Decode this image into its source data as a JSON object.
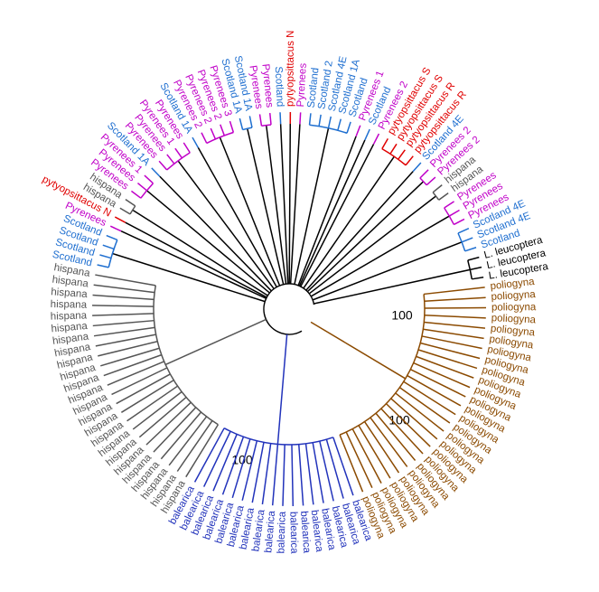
{
  "tree": {
    "leaves": [
      {
        "label": "Scotland",
        "color": "#1f6fd0"
      },
      {
        "label": "Scotland",
        "color": "#1f6fd0"
      },
      {
        "label": "Scotland",
        "color": "#1f6fd0"
      },
      {
        "label": "Scotland",
        "color": "#1f6fd0"
      },
      {
        "label": "Pyrenees",
        "color": "#c000c8"
      },
      {
        "label": "pytyopsittacus N",
        "color": "#e00000"
      },
      {
        "label": "hispana",
        "color": "#555555"
      },
      {
        "label": "hispana",
        "color": "#555555"
      },
      {
        "label": "Pyrenees",
        "color": "#c000c8"
      },
      {
        "label": "Pyrenees",
        "color": "#c000c8"
      },
      {
        "label": "Pyrenees 1",
        "color": "#c000c8"
      },
      {
        "label": "Scotland 1A",
        "color": "#1f6fd0"
      },
      {
        "label": "Pyrenees",
        "color": "#c000c8"
      },
      {
        "label": "Pyrenees",
        "color": "#c000c8"
      },
      {
        "label": "Pyrenees 1",
        "color": "#c000c8"
      },
      {
        "label": "Pyrenees",
        "color": "#c000c8"
      },
      {
        "label": "Scotland 1A",
        "color": "#1f6fd0"
      },
      {
        "label": "Pyrenees 2",
        "color": "#c000c8"
      },
      {
        "label": "Pyrenees 2",
        "color": "#c000c8"
      },
      {
        "label": "Pyrenees 2",
        "color": "#c000c8"
      },
      {
        "label": "Pyrenees 3",
        "color": "#c000c8"
      },
      {
        "label": "Scotland 1A",
        "color": "#1f6fd0"
      },
      {
        "label": "Scotland 1A",
        "color": "#1f6fd0"
      },
      {
        "label": "Pyrenees",
        "color": "#c000c8"
      },
      {
        "label": "Pyrenees",
        "color": "#c000c8"
      },
      {
        "label": "Scotland",
        "color": "#1f6fd0"
      },
      {
        "label": "pytyopsittacus N",
        "color": "#e00000"
      },
      {
        "label": "Pyrenees",
        "color": "#c000c8"
      },
      {
        "label": "Scotland",
        "color": "#1f6fd0"
      },
      {
        "label": "Scotland 2",
        "color": "#1f6fd0"
      },
      {
        "label": "Scotland 4E",
        "color": "#1f6fd0"
      },
      {
        "label": "Scotland 1A",
        "color": "#1f6fd0"
      },
      {
        "label": "Scotland",
        "color": "#1f6fd0"
      },
      {
        "label": "Pyrenees 1",
        "color": "#c000c8"
      },
      {
        "label": "Scotland",
        "color": "#1f6fd0"
      },
      {
        "label": "Pyrenees 2",
        "color": "#c000c8"
      },
      {
        "label": "pytyopsittacus S",
        "color": "#e00000"
      },
      {
        "label": "pytyopsittacus S",
        "color": "#e00000"
      },
      {
        "label": "pytyopsittacus R",
        "color": "#e00000"
      },
      {
        "label": "pytyopsittacus R",
        "color": "#e00000"
      },
      {
        "label": "Scotland 4E",
        "color": "#1f6fd0"
      },
      {
        "label": "Pyrenees 2",
        "color": "#c000c8"
      },
      {
        "label": "Pyrenees 2",
        "color": "#c000c8"
      },
      {
        "label": "hispana",
        "color": "#555555"
      },
      {
        "label": "hispana",
        "color": "#555555"
      },
      {
        "label": "Pyrenees",
        "color": "#c000c8"
      },
      {
        "label": "Pyrenees",
        "color": "#c000c8"
      },
      {
        "label": "Pyrenees",
        "color": "#c000c8"
      },
      {
        "label": "Scotland 4E",
        "color": "#1f6fd0"
      },
      {
        "label": "Scotland 4E",
        "color": "#1f6fd0"
      },
      {
        "label": "Scotland",
        "color": "#1f6fd0"
      },
      {
        "label": "L. leucoptera",
        "color": "#000000"
      },
      {
        "label": "L. leucoptera",
        "color": "#000000"
      },
      {
        "label": "L. leucoptera",
        "color": "#000000"
      },
      {
        "label": "poliogyna",
        "color": "#8b4a00"
      },
      {
        "label": "poliogyna",
        "color": "#8b4a00"
      },
      {
        "label": "poliogyna",
        "color": "#8b4a00"
      },
      {
        "label": "poliogyna",
        "color": "#8b4a00"
      },
      {
        "label": "poliogyna",
        "color": "#8b4a00"
      },
      {
        "label": "poliogyna",
        "color": "#8b4a00"
      },
      {
        "label": "poliogyna",
        "color": "#8b4a00"
      },
      {
        "label": "poliogyna",
        "color": "#8b4a00"
      },
      {
        "label": "poliogyna",
        "color": "#8b4a00"
      },
      {
        "label": "poliogyna",
        "color": "#8b4a00"
      },
      {
        "label": "poliogyna",
        "color": "#8b4a00"
      },
      {
        "label": "poliogyna",
        "color": "#8b4a00"
      },
      {
        "label": "poliogyna",
        "color": "#8b4a00"
      },
      {
        "label": "poliogyna",
        "color": "#8b4a00"
      },
      {
        "label": "poliogyna",
        "color": "#8b4a00"
      },
      {
        "label": "poliogyna",
        "color": "#8b4a00"
      },
      {
        "label": "poliogyna",
        "color": "#8b4a00"
      },
      {
        "label": "poliogyna",
        "color": "#8b4a00"
      },
      {
        "label": "poliogyna",
        "color": "#8b4a00"
      },
      {
        "label": "poliogyna",
        "color": "#8b4a00"
      },
      {
        "label": "poliogyna",
        "color": "#8b4a00"
      },
      {
        "label": "poliogyna",
        "color": "#8b4a00"
      },
      {
        "label": "poliogyna",
        "color": "#8b4a00"
      },
      {
        "label": "poliogyna",
        "color": "#8b4a00"
      },
      {
        "label": "poliogyna",
        "color": "#8b4a00"
      },
      {
        "label": "poliogyna",
        "color": "#8b4a00"
      },
      {
        "label": "balearica",
        "color": "#2233bb"
      },
      {
        "label": "balearica",
        "color": "#2233bb"
      },
      {
        "label": "balearica",
        "color": "#2233bb"
      },
      {
        "label": "balearica",
        "color": "#2233bb"
      },
      {
        "label": "balearica",
        "color": "#2233bb"
      },
      {
        "label": "balearica",
        "color": "#2233bb"
      },
      {
        "label": "balearica",
        "color": "#2233bb"
      },
      {
        "label": "balearica",
        "color": "#2233bb"
      },
      {
        "label": "balearica",
        "color": "#2233bb"
      },
      {
        "label": "balearica",
        "color": "#2233bb"
      },
      {
        "label": "balearica",
        "color": "#2233bb"
      },
      {
        "label": "balearica",
        "color": "#2233bb"
      },
      {
        "label": "balearica",
        "color": "#2233bb"
      },
      {
        "label": "balearica",
        "color": "#2233bb"
      },
      {
        "label": "balearica",
        "color": "#2233bb"
      },
      {
        "label": "balearica",
        "color": "#2233bb"
      },
      {
        "label": "balearica",
        "color": "#2233bb"
      },
      {
        "label": "hispana",
        "color": "#555555"
      },
      {
        "label": "hispana",
        "color": "#555555"
      },
      {
        "label": "hispana",
        "color": "#555555"
      },
      {
        "label": "hispana",
        "color": "#555555"
      },
      {
        "label": "hispana",
        "color": "#555555"
      },
      {
        "label": "hispana",
        "color": "#555555"
      },
      {
        "label": "hispana",
        "color": "#555555"
      },
      {
        "label": "hispana",
        "color": "#555555"
      },
      {
        "label": "hispana",
        "color": "#555555"
      },
      {
        "label": "hispana",
        "color": "#555555"
      },
      {
        "label": "hispana",
        "color": "#555555"
      },
      {
        "label": "hispana",
        "color": "#555555"
      },
      {
        "label": "hispana",
        "color": "#555555"
      },
      {
        "label": "hispana",
        "color": "#555555"
      },
      {
        "label": "hispana",
        "color": "#555555"
      },
      {
        "label": "hispana",
        "color": "#555555"
      },
      {
        "label": "hispana",
        "color": "#555555"
      },
      {
        "label": "hispana",
        "color": "#555555"
      },
      {
        "label": "hispana",
        "color": "#555555"
      },
      {
        "label": "hispana",
        "color": "#555555"
      },
      {
        "label": "hispana",
        "color": "#555555"
      },
      {
        "label": "hispana",
        "color": "#555555"
      },
      {
        "label": "hispana",
        "color": "#555555"
      },
      {
        "label": "hispana",
        "color": "#555555"
      }
    ],
    "support_labels": [
      "100",
      "100",
      "100"
    ]
  }
}
